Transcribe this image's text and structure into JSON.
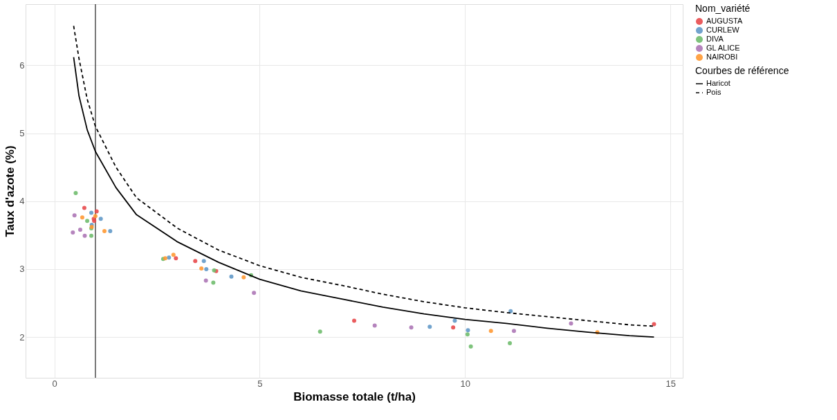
{
  "chart_data": {
    "type": "scatter",
    "xlabel": "Biomasse totale (t/ha)",
    "ylabel": "Taux d'azote (%)",
    "legend_title": [
      "Nom_variété",
      "Courbes de référence"
    ],
    "xlim": [
      -0.7,
      15.3
    ],
    "ylim": [
      1.4,
      6.9
    ],
    "xticks": [
      0,
      5,
      10,
      15
    ],
    "yticks": [
      2,
      3,
      4,
      5,
      6
    ],
    "grid": true,
    "legend": "right",
    "marker": "circle",
    "ref_lines": [
      {
        "axis": "x",
        "value": 1,
        "color": "#333333",
        "line_style": "solid"
      }
    ],
    "series": [
      {
        "name": "AUGUSTA",
        "color": "#e84a4c",
        "x": [
          0.73,
          1.03,
          0.96,
          0.97,
          2.96,
          3.43,
          3.94,
          7.3,
          9.71,
          14.6
        ],
        "values": [
          3.9,
          3.85,
          3.74,
          3.71,
          3.16,
          3.12,
          2.97,
          2.24,
          2.14,
          2.19
        ]
      },
      {
        "name": "CURLEW",
        "color": "#6299c8",
        "x": [
          0.9,
          1.13,
          0.91,
          1.36,
          2.79,
          3.64,
          3.7,
          4.31,
          9.14,
          9.75,
          10.07,
          11.11
        ],
        "values": [
          3.83,
          3.74,
          3.65,
          3.56,
          3.17,
          3.12,
          3.0,
          2.89,
          2.15,
          2.24,
          2.1,
          2.38
        ]
      },
      {
        "name": "DIVA",
        "color": "#70bd6e",
        "x": [
          0.52,
          0.8,
          0.9,
          0.9,
          2.65,
          3.89,
          4.79,
          3.87,
          6.47,
          10.06,
          10.14,
          11.09
        ],
        "values": [
          4.12,
          3.71,
          3.6,
          3.49,
          3.15,
          2.98,
          2.91,
          2.8,
          2.08,
          2.04,
          1.86,
          1.91
        ]
      },
      {
        "name": "GL ALICE",
        "color": "#ad77b6",
        "x": [
          0.49,
          0.63,
          0.45,
          0.74,
          3.69,
          4.86,
          7.8,
          8.69,
          11.19,
          12.58
        ],
        "values": [
          3.79,
          3.58,
          3.54,
          3.49,
          2.83,
          2.65,
          2.17,
          2.14,
          2.09,
          2.2
        ]
      },
      {
        "name": "NAIROBI",
        "color": "#ff9933",
        "x": [
          0.68,
          1.0,
          0.91,
          1.22,
          2.7,
          2.9,
          3.58,
          4.61,
          10.63,
          13.22
        ],
        "values": [
          3.76,
          3.78,
          3.62,
          3.56,
          3.16,
          3.21,
          3.01,
          2.88,
          2.09,
          2.07
        ]
      },
      {
        "name": "Haricot",
        "type": "line",
        "marker": "none",
        "color": "#000000",
        "line_style": "solid",
        "x": [
          0.47,
          0.6,
          0.8,
          1,
          1.5,
          2,
          3,
          4,
          5,
          6,
          7,
          8,
          9,
          10,
          11,
          12,
          13,
          14,
          14.6
        ],
        "values": [
          6.12,
          5.55,
          5.05,
          4.73,
          4.2,
          3.8,
          3.4,
          3.1,
          2.85,
          2.68,
          2.56,
          2.44,
          2.34,
          2.26,
          2.2,
          2.13,
          2.07,
          2.02,
          2.0
        ]
      },
      {
        "name": "Pois",
        "type": "line",
        "marker": "none",
        "color": "#000000",
        "line_style": "dashed",
        "x": [
          0.47,
          0.6,
          0.8,
          1,
          1.5,
          2,
          3,
          4,
          5,
          6,
          7,
          8,
          9,
          10,
          11,
          12,
          13,
          14,
          14.6
        ],
        "values": [
          6.58,
          6.1,
          5.5,
          5.1,
          4.5,
          4.05,
          3.6,
          3.28,
          3.05,
          2.88,
          2.76,
          2.63,
          2.52,
          2.43,
          2.36,
          2.3,
          2.24,
          2.18,
          2.16
        ]
      }
    ]
  }
}
